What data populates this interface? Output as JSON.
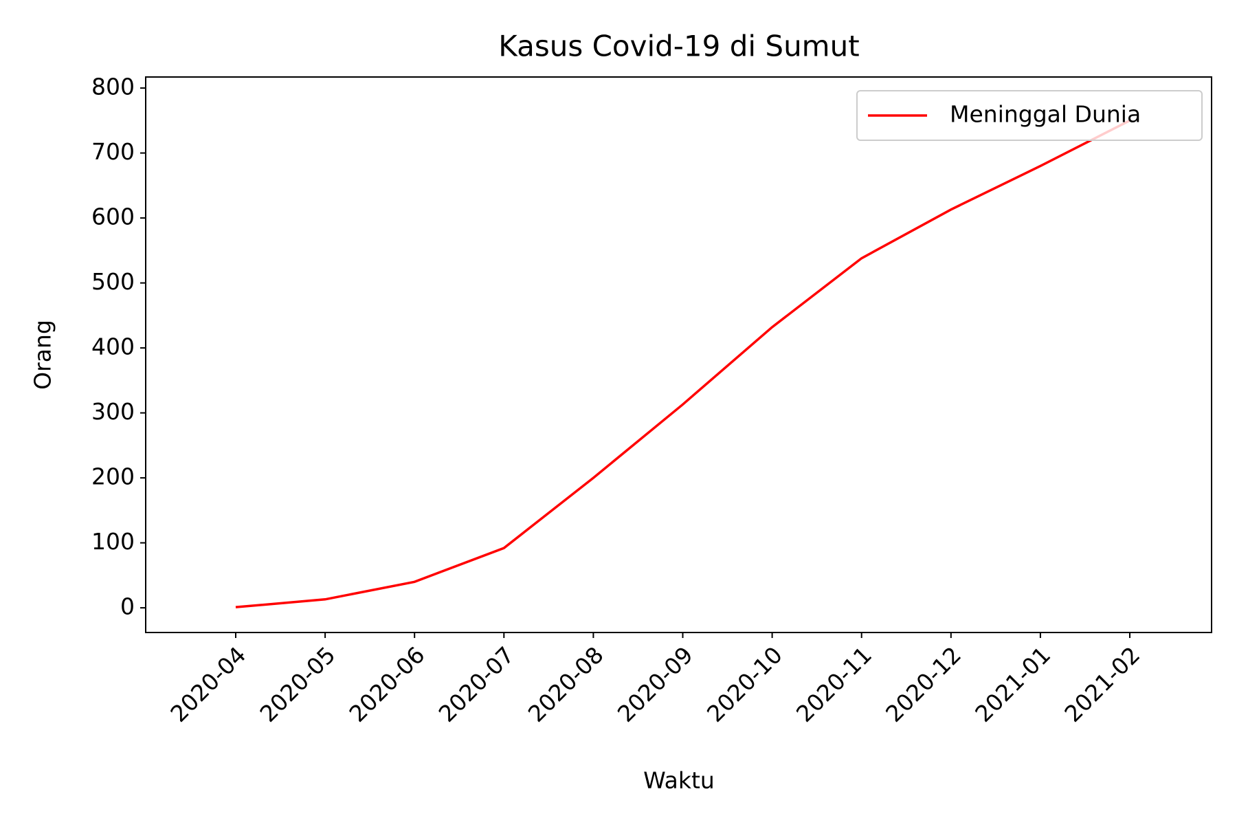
{
  "chart_data": {
    "type": "line",
    "title": "Kasus Covid-19 di Sumut",
    "x_label": "Waktu",
    "y_label": "Orang",
    "x": [
      "2020-04",
      "2020-05",
      "2020-06",
      "2020-07",
      "2020-08",
      "2020-09",
      "2020-10",
      "2020-11",
      "2020-12",
      "2021-01",
      "2021-02"
    ],
    "series": [
      {
        "name": "Meninggal Dunia",
        "color": "#ff0000",
        "values": [
          1,
          13,
          40,
          92,
          200,
          313,
          432,
          538,
          613,
          680,
          750
        ]
      }
    ],
    "ylim": [
      -38,
      817
    ],
    "yticks": [
      0,
      100,
      200,
      300,
      400,
      500,
      600,
      700,
      800
    ],
    "legend": "upper right"
  }
}
